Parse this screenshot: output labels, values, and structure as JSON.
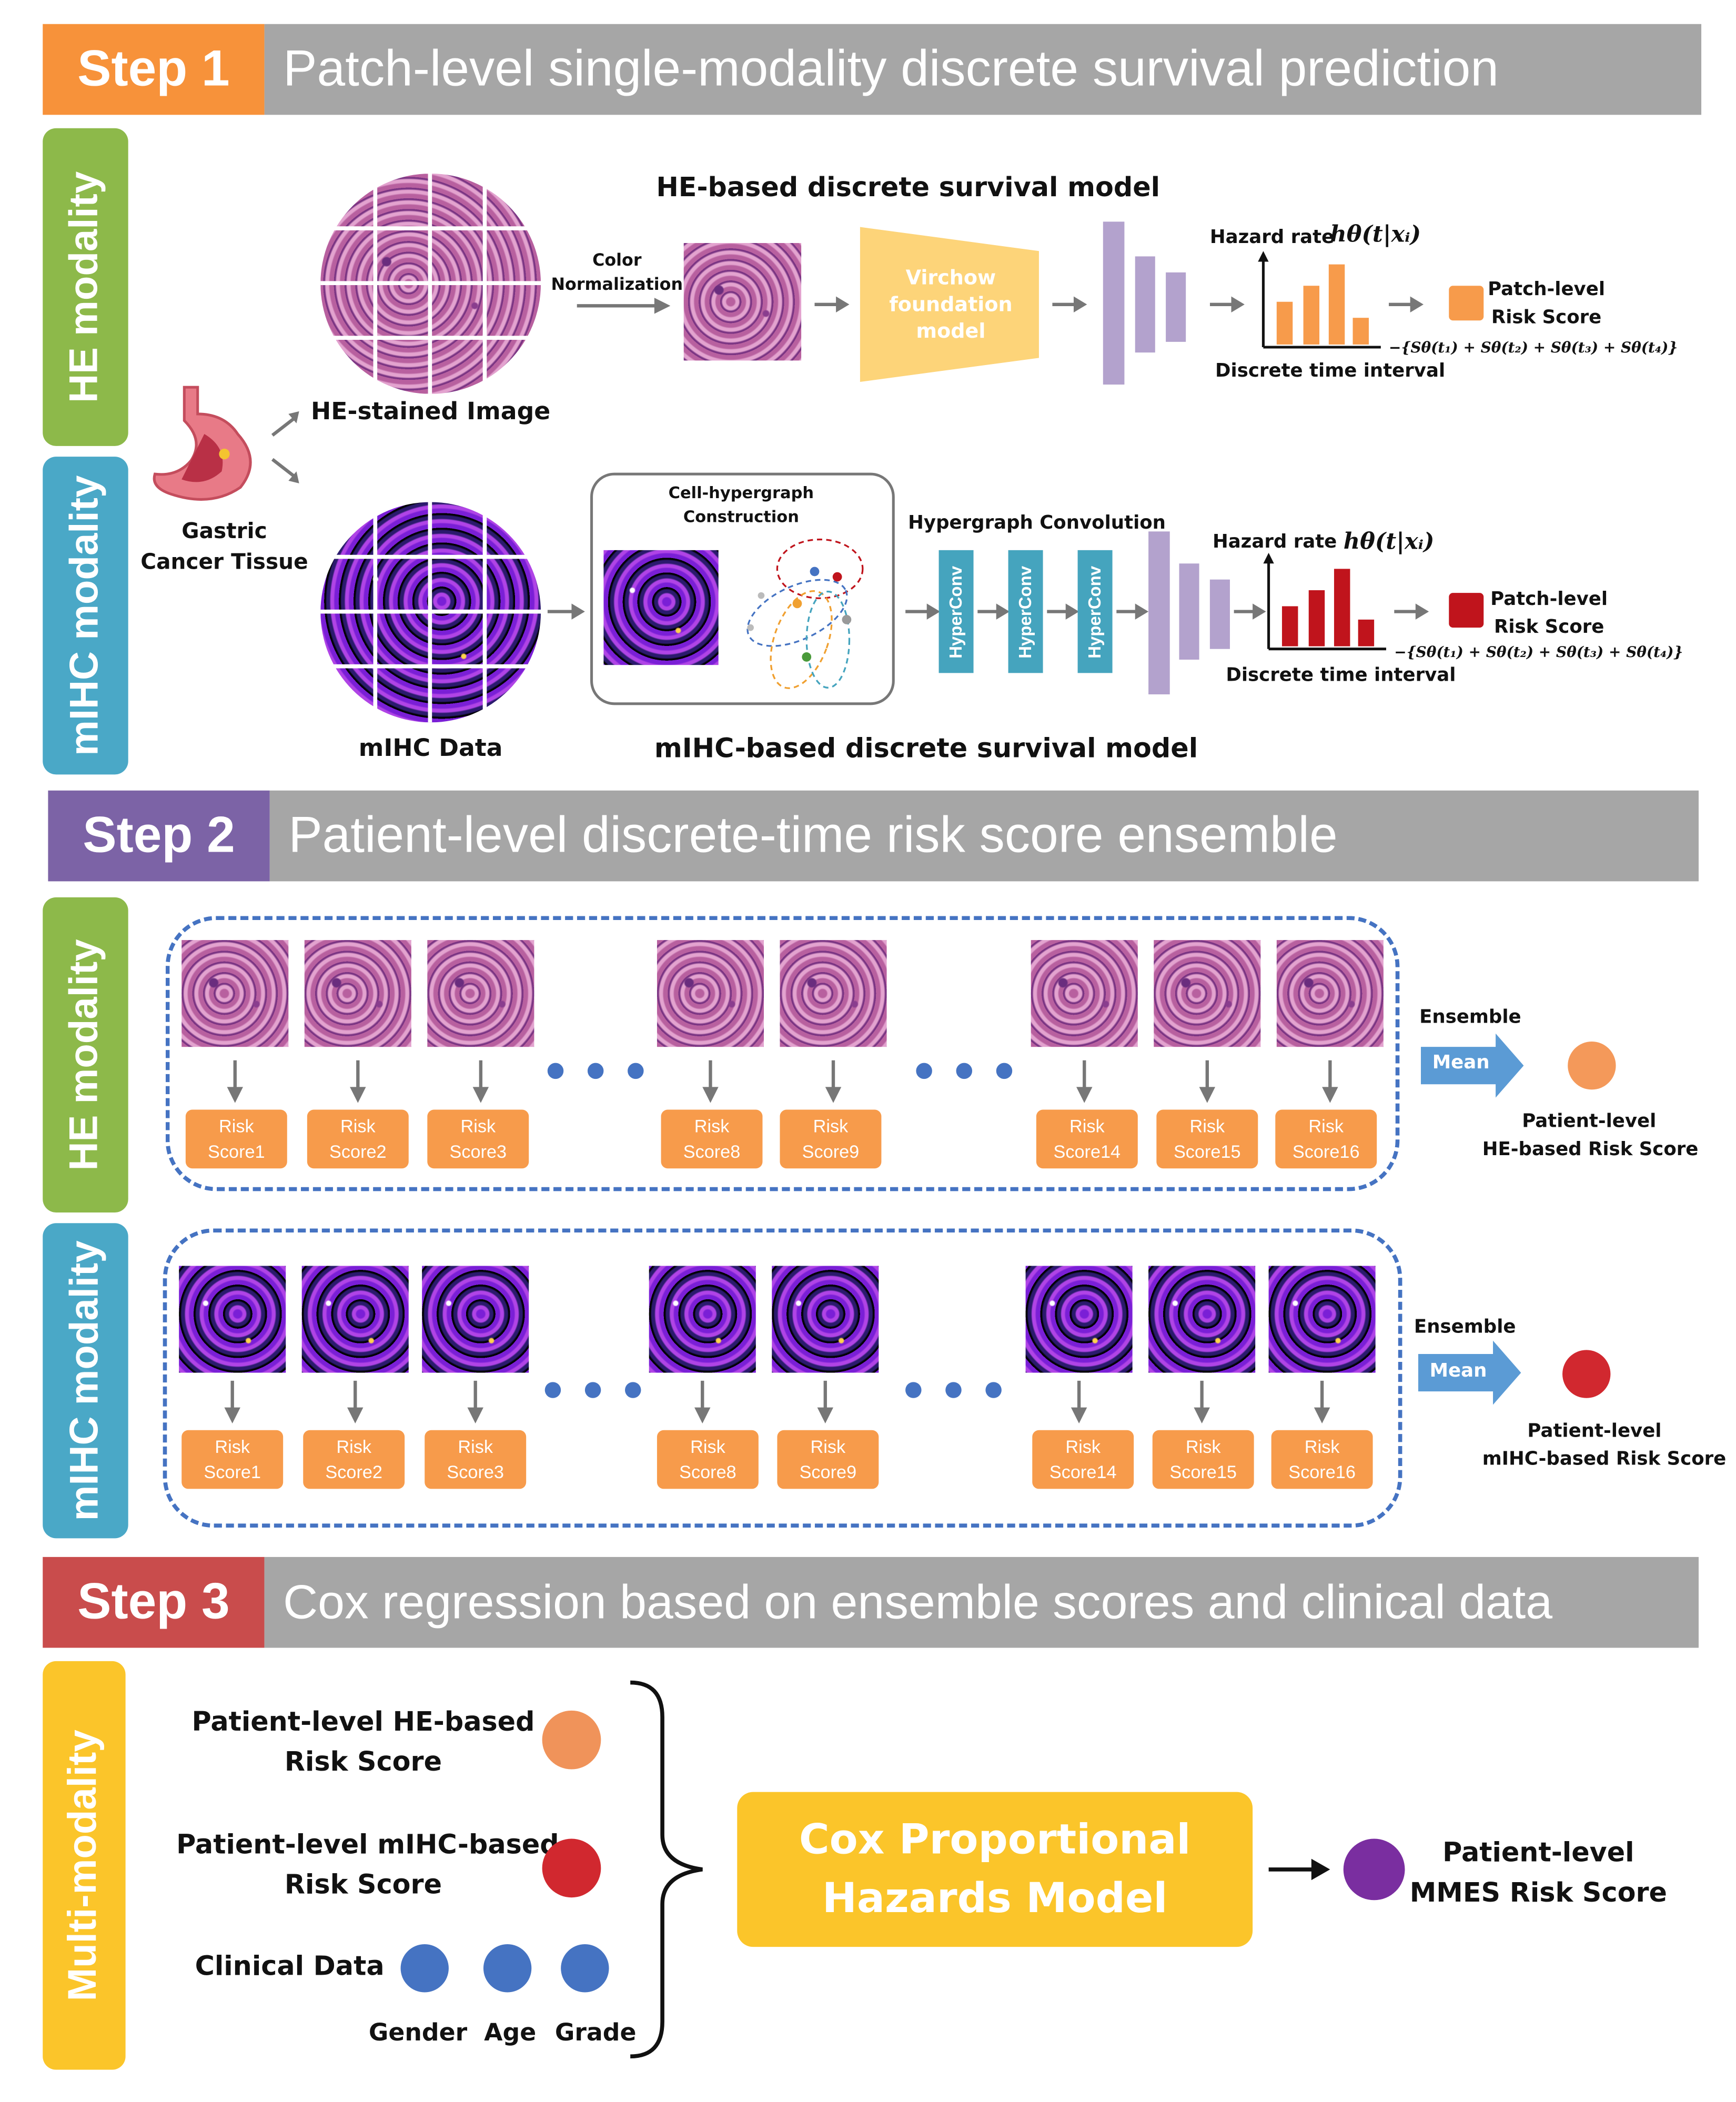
{
  "step1": {
    "tag": "Step 1",
    "title": "Patch-level single-modality discrete survival prediction",
    "he_side": "HE modality",
    "mihc_side": "mIHC modality",
    "tissue_label_1": "Gastric",
    "tissue_label_2": "Cancer Tissue",
    "he_image_label": "HE-stained Image",
    "color_norm_1": "Color",
    "color_norm_2": "Normalization",
    "he_model_title": "HE-based discrete survival model",
    "virchow_1": "Virchow",
    "virchow_2": "foundation",
    "virchow_3": "model",
    "hazard_label": "Hazard rate",
    "hazard_formula": "hθ(t|xᵢ)",
    "discrete_time": "Discrete time interval",
    "patch_risk_1": "Patch-level",
    "patch_risk_2": "Risk Score",
    "sum_formula": "−{Sθ(t₁) + Sθ(t₂) + Sθ(t₃) + Sθ(t₄)}",
    "mihc_data_label": "mIHC Data",
    "hypergraph_1": "Cell-hypergraph",
    "hypergraph_2": "Construction",
    "hyperconv_title": "Hypergraph Convolution",
    "hyperconv": "HyperConv",
    "mihc_model_title": "mIHC-based discrete survival model",
    "colors": {
      "he_side": "#8db94a",
      "mihc_side": "#4aa8c7",
      "he_score": "#f79b4b",
      "mihc_score": "#c0141c",
      "bar_purple": "#b3a2cd"
    }
  },
  "step2": {
    "tag": "Step 2",
    "title": "Patient-level discrete-time risk score ensemble",
    "he_side": "HE modality",
    "mihc_side": "mIHC modality",
    "he_scores": [
      {
        "a": "Risk",
        "b": "Score1"
      },
      {
        "a": "Risk",
        "b": "Score2"
      },
      {
        "a": "Risk",
        "b": "Score3"
      },
      {
        "a": "Risk",
        "b": "Score8"
      },
      {
        "a": "Risk",
        "b": "Score9"
      },
      {
        "a": "Risk",
        "b": "Score14"
      },
      {
        "a": "Risk",
        "b": "Score15"
      },
      {
        "a": "Risk",
        "b": "Score16"
      }
    ],
    "mihc_scores": [
      {
        "a": "Risk",
        "b": "Score1"
      },
      {
        "a": "Risk",
        "b": "Score2"
      },
      {
        "a": "Risk",
        "b": "Score3"
      },
      {
        "a": "Risk",
        "b": "Score8"
      },
      {
        "a": "Risk",
        "b": "Score9"
      },
      {
        "a": "Risk",
        "b": "Score14"
      },
      {
        "a": "Risk",
        "b": "Score15"
      },
      {
        "a": "Risk",
        "b": "Score16"
      }
    ],
    "ensemble": "Ensemble",
    "mean": "Mean",
    "he_patient_1": "Patient-level",
    "he_patient_2": "HE-based Risk Score",
    "mihc_patient_1": "Patient-level",
    "mihc_patient_2": "mIHC-based Risk Score"
  },
  "step3": {
    "tag": "Step 3",
    "title": "Cox regression based on ensemble scores and clinical data",
    "side": "Multi-modality",
    "he_score_1": "Patient-level HE-based",
    "he_score_2": "Risk Score",
    "mihc_score_1": "Patient-level mIHC-based",
    "mihc_score_2": "Risk Score",
    "clinical": "Clinical Data",
    "gender": "Gender",
    "age": "Age",
    "grade": "Grade",
    "cox_1": "Cox Proportional",
    "cox_2": "Hazards Model",
    "mmes_1": "Patient-level",
    "mmes_2": "MMES Risk Score"
  }
}
